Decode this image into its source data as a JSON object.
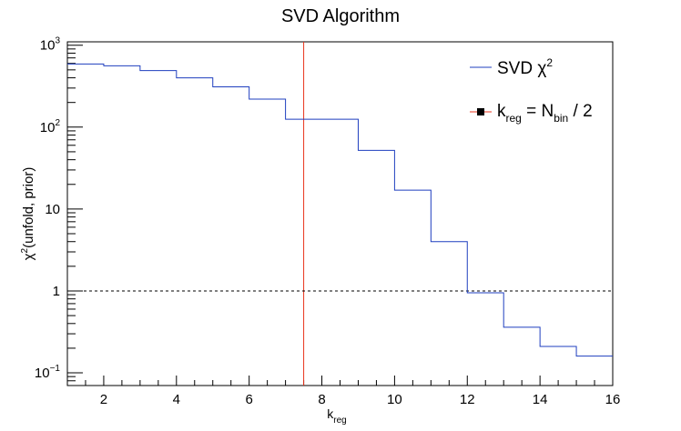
{
  "chart_data": {
    "type": "line",
    "title": "SVD Algorithm",
    "xlabel": {
      "base": "k",
      "sub": "reg"
    },
    "ylabel": {
      "pre": "χ",
      "sup": "2",
      "post": "(unfold, prior)"
    },
    "xlim": [
      1,
      16
    ],
    "ylim": [
      0.07,
      1100
    ],
    "yscale": "log",
    "x_ticks": [
      2,
      4,
      6,
      8,
      10,
      12,
      14,
      16
    ],
    "y_ticks": [
      {
        "value": 0.1,
        "base": "10",
        "sup": "−1"
      },
      {
        "value": 1,
        "base": "1",
        "sup": ""
      },
      {
        "value": 10,
        "base": "10",
        "sup": ""
      },
      {
        "value": 100,
        "base": "10",
        "sup": "2"
      },
      {
        "value": 1000,
        "base": "10",
        "sup": "3"
      }
    ],
    "series": [
      {
        "name": "SVD χ²",
        "color": "#1f3fbf",
        "style": "step",
        "bin_edges": [
          1,
          2,
          3,
          4,
          5,
          6,
          7,
          8,
          9,
          10,
          11,
          12,
          13,
          14,
          15,
          16
        ],
        "values": [
          590,
          560,
          490,
          400,
          310,
          220,
          125,
          125,
          52,
          17,
          4,
          0.95,
          0.36,
          0.21,
          0.16
        ]
      }
    ],
    "reference_lines": [
      {
        "name": "k_reg = N_bin / 2",
        "orientation": "vertical",
        "x": 7.5,
        "color": "#e8341c"
      },
      {
        "orientation": "horizontal",
        "y": 1,
        "color": "#000000",
        "dash": "dotted"
      }
    ],
    "legend": {
      "placement": "top-right",
      "entries": [
        {
          "label_base": "SVD χ",
          "label_sup": "2",
          "marker": "line",
          "color": "#1f3fbf"
        },
        {
          "label_base": "k",
          "label_sub1": "reg",
          "label_mid": " = N",
          "label_sub2": "bin",
          "label_end": " / 2",
          "marker": "line-square",
          "color": "#e8341c"
        }
      ]
    }
  }
}
